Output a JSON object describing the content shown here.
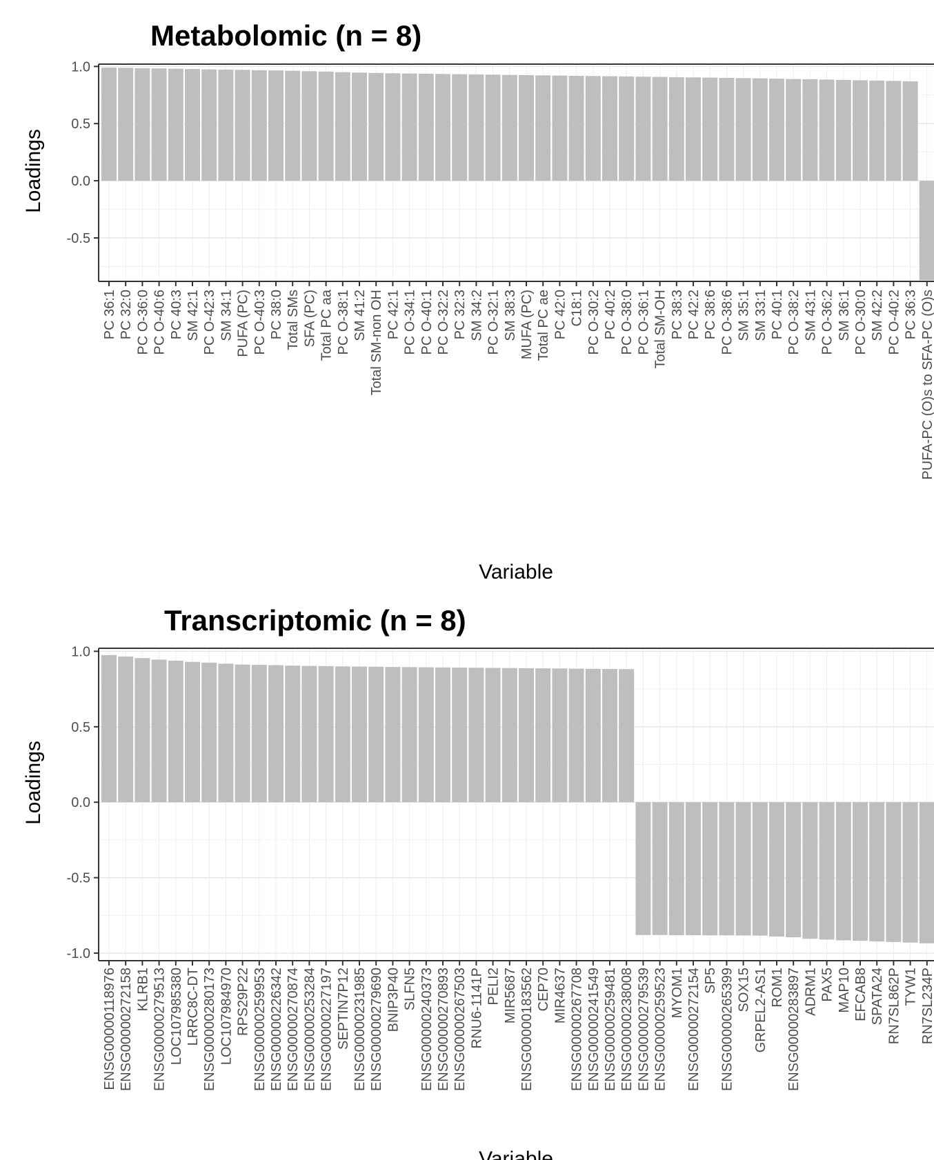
{
  "chart_data": [
    {
      "type": "bar",
      "title": "Metabolomic (n = 8)",
      "xlabel": "Variable",
      "ylabel": "Loadings",
      "ylim": [
        -0.88,
        1.02
      ],
      "yticks": [
        1.0,
        0.5,
        0.0,
        -0.5
      ],
      "ytick_labels": [
        "1.0",
        "0.5",
        "0.0",
        "-0.5"
      ],
      "grid": true,
      "bar_color": "#bebebe",
      "categories": [
        "PC 36:1",
        "PC 32:0",
        "PC O-36:0",
        "PC O-40:6",
        "PC 40:3",
        "SM 42:1",
        "PC O-42:3",
        "SM 34:1",
        "PUFA (PC)",
        "PC O-40:3",
        "PC 38:0",
        "Total SMs",
        "SFA (PC)",
        "Total PC aa",
        "PC O-38:1",
        "SM 41:2",
        "Total SM-non OH",
        "PC 42:1",
        "PC O-34:1",
        "PC O-40:1",
        "PC O-32:2",
        "PC 32:3",
        "SM 34:2",
        "PC O-32:1",
        "SM 38:3",
        "MUFA (PC)",
        "Total PC ae",
        "PC 42:0",
        "C18:1",
        "PC O-30:2",
        "PC 40:2",
        "PC O-38:0",
        "PC O-36:1",
        "Total SM-OH",
        "PC 38:3",
        "PC 42:2",
        "PC 38:6",
        "PC O-38:6",
        "SM 35:1",
        "SM 33:1",
        "PC 40:1",
        "PC O-38:2",
        "SM 43:1",
        "PC O-36:2",
        "SM 36:1",
        "PC O-30:0",
        "SM 42:2",
        "PC O-40:2",
        "PC 36:3",
        "PUFA-PC (O)s to SFA-PC (O)s"
      ],
      "values": [
        0.99,
        0.988,
        0.985,
        0.983,
        0.98,
        0.977,
        0.974,
        0.972,
        0.97,
        0.967,
        0.965,
        0.962,
        0.958,
        0.955,
        0.95,
        0.946,
        0.943,
        0.94,
        0.938,
        0.936,
        0.934,
        0.932,
        0.93,
        0.928,
        0.926,
        0.924,
        0.922,
        0.92,
        0.918,
        0.916,
        0.914,
        0.912,
        0.91,
        0.908,
        0.906,
        0.904,
        0.902,
        0.9,
        0.898,
        0.896,
        0.893,
        0.89,
        0.888,
        0.885,
        0.882,
        0.879,
        0.876,
        0.873,
        0.87,
        -0.87
      ]
    },
    {
      "type": "bar",
      "title": "Transcriptomic (n = 8)",
      "xlabel": "Variable",
      "ylabel": "Loadings",
      "ylim": [
        -1.05,
        1.02
      ],
      "yticks": [
        1.0,
        0.5,
        0.0,
        -0.5,
        -1.0
      ],
      "ytick_labels": [
        "1.0",
        "0.5",
        "0.0",
        "-0.5",
        "-1.0"
      ],
      "grid": true,
      "bar_color": "#bebebe",
      "categories": [
        "ENSG00000118976",
        "ENSG00000272158",
        "KLRB1",
        "ENSG00000279513",
        "LOC107985380",
        "LRRC8C-DT",
        "ENSG00000280173",
        "LOC107984970",
        "RPS29P22",
        "ENSG00000259953",
        "ENSG00000226342",
        "ENSG00000270874",
        "ENSG00000253284",
        "ENSG00000227197",
        "SEPTIN7P12",
        "ENSG00000231985",
        "ENSG00000279690",
        "BNIP3P40",
        "SLFN5",
        "ENSG00000240373",
        "ENSG00000270893",
        "ENSG00000267503",
        "RNU6-1141P",
        "PELI2",
        "MIR5687",
        "ENSG00000183562",
        "CEP70",
        "MIR4637",
        "ENSG00000267708",
        "ENSG00000241549",
        "ENSG00000259481",
        "ENSG00000238008",
        "ENSG00000279539",
        "ENSG00000259523",
        "MYOM1",
        "ENSG00000272154",
        "SP5",
        "ENSG00000265399",
        "SOX15",
        "GRPEL2-AS1",
        "ROM1",
        "ENSG00000283897",
        "ADRM1",
        "PAX5",
        "MAP10",
        "EFCAB8",
        "SPATA24",
        "RN7SL862P",
        "TYW1",
        "RN7SL234P"
      ],
      "values": [
        0.975,
        0.965,
        0.955,
        0.945,
        0.938,
        0.93,
        0.925,
        0.918,
        0.912,
        0.91,
        0.908,
        0.905,
        0.903,
        0.902,
        0.9,
        0.899,
        0.898,
        0.896,
        0.895,
        0.894,
        0.893,
        0.892,
        0.891,
        0.89,
        0.889,
        0.888,
        0.887,
        0.886,
        0.885,
        0.884,
        0.883,
        0.882,
        -0.88,
        -0.88,
        -0.881,
        -0.881,
        -0.882,
        -0.882,
        -0.883,
        -0.884,
        -0.89,
        -0.895,
        -0.905,
        -0.91,
        -0.915,
        -0.918,
        -0.922,
        -0.926,
        -0.93,
        -0.935
      ]
    }
  ]
}
